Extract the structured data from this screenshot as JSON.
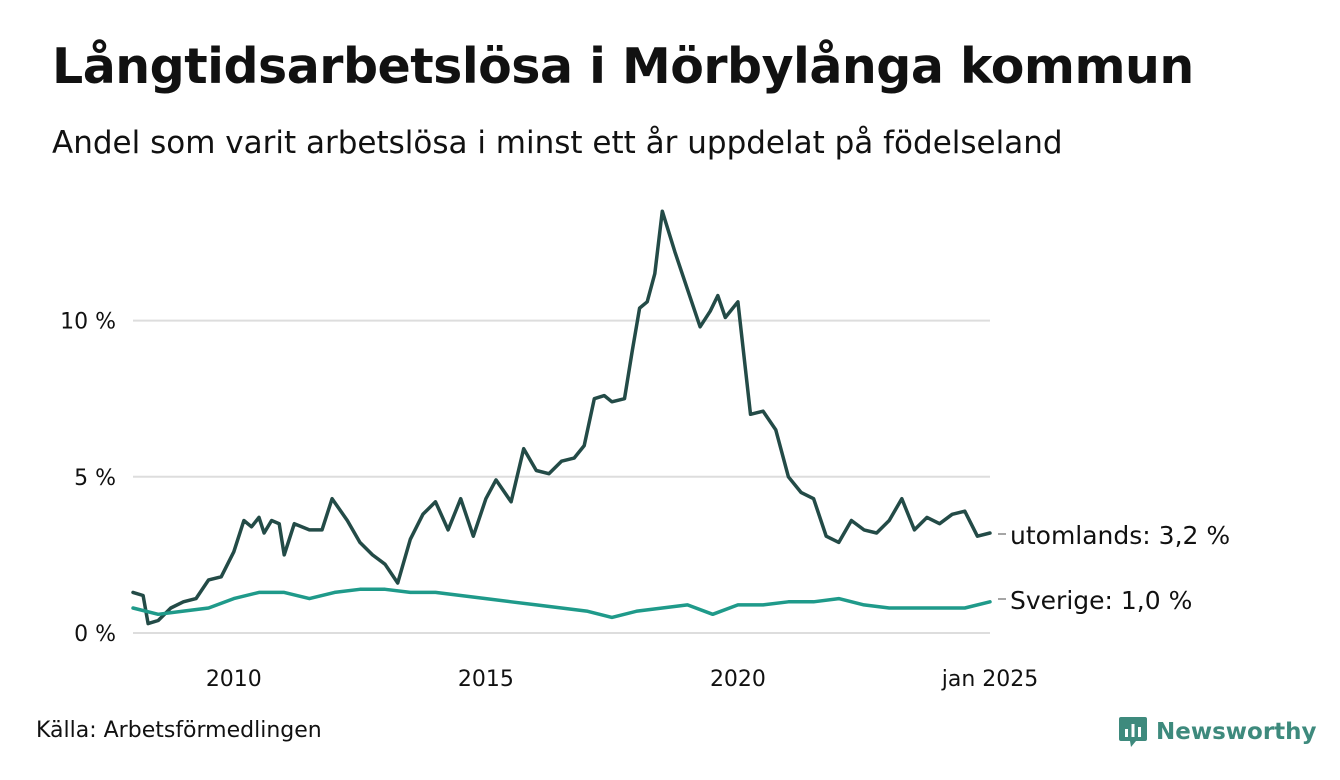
{
  "title": "Långtidsarbetslösa i Mörbylånga kommun",
  "subtitle": "Andel som varit arbetslösa i minst ett år uppdelat på födelseland",
  "source": "Källa: Arbetsförmedlingen",
  "brand": {
    "name": "Newsworthy",
    "color": "#3e8a7d"
  },
  "chart_data": {
    "type": "line",
    "title": "Långtidsarbetslösa i Mörbylånga kommun",
    "subtitle": "Andel som varit arbetslösa i minst ett år uppdelat på födelseland",
    "xlabel": "",
    "ylabel": "",
    "xlim": [
      2008.0,
      2025.0
    ],
    "ylim": [
      0,
      13.7
    ],
    "y_ticks": [
      {
        "value": 0,
        "label": "0 %"
      },
      {
        "value": 5,
        "label": "5 %"
      },
      {
        "value": 10,
        "label": "10 %"
      }
    ],
    "x_ticks": [
      {
        "value": 2010,
        "label": "2010"
      },
      {
        "value": 2015,
        "label": "2015"
      },
      {
        "value": 2020,
        "label": "2020"
      },
      {
        "value": 2025,
        "label": "jan 2025"
      }
    ],
    "grid": "horizontal",
    "legend": "end-of-line labels",
    "series": [
      {
        "name": "utomlands",
        "end_label": "utomlands: 3,2 %",
        "color": "#234b47",
        "x": [
          2008.0,
          2008.2,
          2008.3,
          2008.5,
          2008.75,
          2009.0,
          2009.25,
          2009.5,
          2009.75,
          2010.0,
          2010.2,
          2010.35,
          2010.5,
          2010.6,
          2010.75,
          2010.9,
          2011.0,
          2011.2,
          2011.5,
          2011.75,
          2011.95,
          2012.25,
          2012.5,
          2012.75,
          2013.0,
          2013.25,
          2013.5,
          2013.75,
          2014.0,
          2014.25,
          2014.5,
          2014.75,
          2015.0,
          2015.2,
          2015.5,
          2015.75,
          2016.0,
          2016.25,
          2016.5,
          2016.75,
          2016.95,
          2017.15,
          2017.35,
          2017.5,
          2017.75,
          2017.9,
          2018.05,
          2018.2,
          2018.35,
          2018.5,
          2018.75,
          2019.0,
          2019.25,
          2019.45,
          2019.6,
          2019.75,
          2020.0,
          2020.25,
          2020.5,
          2020.75,
          2021.0,
          2021.25,
          2021.5,
          2021.75,
          2022.0,
          2022.25,
          2022.5,
          2022.75,
          2023.0,
          2023.25,
          2023.5,
          2023.75,
          2024.0,
          2024.25,
          2024.5,
          2024.75,
          2025.0
        ],
        "values": [
          1.3,
          1.2,
          0.3,
          0.4,
          0.8,
          1.0,
          1.1,
          1.7,
          1.8,
          2.6,
          3.6,
          3.4,
          3.7,
          3.2,
          3.6,
          3.5,
          2.5,
          3.5,
          3.3,
          3.3,
          4.3,
          3.6,
          2.9,
          2.5,
          2.2,
          1.6,
          3.0,
          3.8,
          4.2,
          3.3,
          4.3,
          3.1,
          4.3,
          4.9,
          4.2,
          5.9,
          5.2,
          5.1,
          5.5,
          5.6,
          6.0,
          7.5,
          7.6,
          7.4,
          7.5,
          9.0,
          10.4,
          10.6,
          11.5,
          13.5,
          12.2,
          11.0,
          9.8,
          10.3,
          10.8,
          10.1,
          10.6,
          7.0,
          7.1,
          6.5,
          5.0,
          4.5,
          4.3,
          3.1,
          2.9,
          3.6,
          3.3,
          3.2,
          3.6,
          4.3,
          3.3,
          3.7,
          3.5,
          3.8,
          3.9,
          3.1,
          3.2
        ]
      },
      {
        "name": "Sverige",
        "end_label": "Sverige: 1,0 %",
        "color": "#1f9a8a",
        "x": [
          2008.0,
          2008.5,
          2009.0,
          2009.5,
          2010.0,
          2010.5,
          2011.0,
          2011.5,
          2012.0,
          2012.5,
          2013.0,
          2013.5,
          2014.0,
          2014.5,
          2015.0,
          2015.5,
          2016.0,
          2016.5,
          2017.0,
          2017.5,
          2018.0,
          2018.5,
          2019.0,
          2019.5,
          2020.0,
          2020.5,
          2021.0,
          2021.5,
          2022.0,
          2022.5,
          2023.0,
          2023.5,
          2024.0,
          2024.5,
          2025.0
        ],
        "values": [
          0.8,
          0.6,
          0.7,
          0.8,
          1.1,
          1.3,
          1.3,
          1.1,
          1.3,
          1.4,
          1.4,
          1.3,
          1.3,
          1.2,
          1.1,
          1.0,
          0.9,
          0.8,
          0.7,
          0.5,
          0.7,
          0.8,
          0.9,
          0.6,
          0.9,
          0.9,
          1.0,
          1.0,
          1.1,
          0.9,
          0.8,
          0.8,
          0.8,
          0.8,
          1.0
        ]
      }
    ]
  }
}
